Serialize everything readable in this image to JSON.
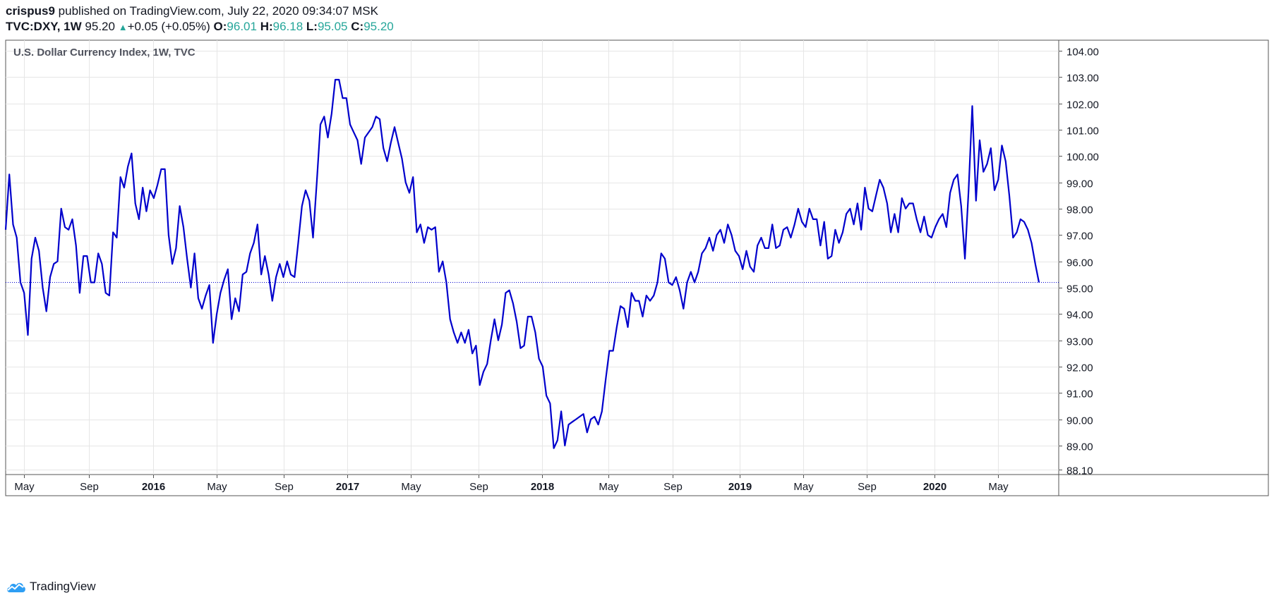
{
  "header": {
    "user": "crispus9",
    "published_text": "published on TradingView.com, July 22, 2020 09:34:07 MSK",
    "symbol": "TVC:DXY, 1W",
    "last": "95.20",
    "change_arrow": "▲",
    "change": "+0.05 (+0.05%)",
    "open_label": "O:",
    "open": "96.01",
    "high_label": "H:",
    "high": "96.18",
    "low_label": "L:",
    "low": "95.05",
    "close_label": "C:",
    "close": "95.20"
  },
  "chart_title": "U.S. Dollar Currency Index, 1W, TVC",
  "footer": {
    "logo_text": "TradingView",
    "logo_icon": "cloud-icon"
  },
  "colors": {
    "line": "#0000cc",
    "grid": "#e6e6e6",
    "text": "#131722",
    "up": "#26a69a"
  },
  "chart_data": {
    "type": "line",
    "x_ticks": [
      "May",
      "Sep",
      "2016",
      "May",
      "Sep",
      "2017",
      "May",
      "Sep",
      "2018",
      "May",
      "Sep",
      "2019",
      "May",
      "Sep",
      "2020",
      "May"
    ],
    "x_tick_bold": [
      false,
      false,
      true,
      false,
      false,
      true,
      false,
      false,
      true,
      false,
      false,
      true,
      false,
      false,
      true,
      false
    ],
    "y_ticks": [
      "104.00",
      "103.00",
      "102.00",
      "101.00",
      "100.00",
      "99.00",
      "98.00",
      "97.00",
      "96.00",
      "95.00",
      "94.00",
      "93.00",
      "92.00",
      "91.00",
      "90.00",
      "89.00",
      "88.10"
    ],
    "ylim": [
      87.9,
      104.4
    ],
    "current_value": 95.2,
    "grid": true,
    "series": [
      {
        "values": [
          97.2,
          99.3,
          97.4,
          96.9,
          95.2,
          94.8,
          93.2,
          96.1,
          96.9,
          96.4,
          95.0,
          94.1,
          95.4,
          95.9,
          96.0,
          98.0,
          97.3,
          97.2,
          97.6,
          96.6,
          94.8,
          96.2,
          96.2,
          95.2,
          95.2,
          96.3,
          95.9,
          94.8,
          94.7,
          97.1,
          96.9,
          99.2,
          98.8,
          99.6,
          100.1,
          98.2,
          97.6,
          98.8,
          97.9,
          98.7,
          98.4,
          98.9,
          99.5,
          99.5,
          97.0,
          95.9,
          96.5,
          98.1,
          97.3,
          96.1,
          95.0,
          96.3,
          94.6,
          94.2,
          94.7,
          95.1,
          92.9,
          94.0,
          94.8,
          95.3,
          95.7,
          93.8,
          94.6,
          94.1,
          95.5,
          95.6,
          96.3,
          96.7,
          97.4,
          95.5,
          96.2,
          95.5,
          94.5,
          95.4,
          95.9,
          95.4,
          96.0,
          95.5,
          95.4,
          96.7,
          98.1,
          98.7,
          98.3,
          96.9,
          99.0,
          101.2,
          101.5,
          100.7,
          101.6,
          102.9,
          102.9,
          102.2,
          102.2,
          101.2,
          100.9,
          100.6,
          99.7,
          100.7,
          100.9,
          101.1,
          101.5,
          101.4,
          100.3,
          99.8,
          100.5,
          101.1,
          100.5,
          99.9,
          99.0,
          98.6,
          99.2,
          97.1,
          97.4,
          96.7,
          97.3,
          97.2,
          97.3,
          95.6,
          96.0,
          95.2,
          93.8,
          93.3,
          92.9,
          93.3,
          92.9,
          93.4,
          92.5,
          92.8,
          91.3,
          91.8,
          92.1,
          93.0,
          93.8,
          93.0,
          93.6,
          94.8,
          94.9,
          94.4,
          93.7,
          92.7,
          92.8,
          93.9,
          93.9,
          93.3,
          92.3,
          92.0,
          90.9,
          90.6,
          88.9,
          89.2,
          90.3,
          89.0,
          89.8,
          89.9,
          90.0,
          90.1,
          90.2,
          89.5,
          90.0,
          90.1,
          89.8,
          90.3,
          91.5,
          92.6,
          92.6,
          93.5,
          94.3,
          94.2,
          93.5,
          94.8,
          94.5,
          94.5,
          93.9,
          94.7,
          94.5,
          94.7,
          95.2,
          96.3,
          96.1,
          95.2,
          95.1,
          95.4,
          94.9,
          94.2,
          95.2,
          95.6,
          95.2,
          95.6,
          96.3,
          96.5,
          96.9,
          96.4,
          97.0,
          97.2,
          96.7,
          97.4,
          97.0,
          96.4,
          96.2,
          95.7,
          96.4,
          95.8,
          95.6,
          96.6,
          96.9,
          96.5,
          96.5,
          97.4,
          96.5,
          96.6,
          97.2,
          97.3,
          96.9,
          97.4,
          98.0,
          97.5,
          97.3,
          98.0,
          97.6,
          97.6,
          96.6,
          97.5,
          96.1,
          96.2,
          97.2,
          96.7,
          97.1,
          97.8,
          98.0,
          97.4,
          98.2,
          97.2,
          98.8,
          98.0,
          97.9,
          98.5,
          99.1,
          98.8,
          98.2,
          97.1,
          97.8,
          97.1,
          98.4,
          98.0,
          98.2,
          98.2,
          97.6,
          97.1,
          97.7,
          97.0,
          96.9,
          97.3,
          97.6,
          97.8,
          97.3,
          98.6,
          99.1,
          99.3,
          98.1,
          96.1,
          98.7,
          101.9,
          98.3,
          100.6,
          99.4,
          99.7,
          100.3,
          98.7,
          99.1,
          100.4,
          99.8,
          98.5,
          96.9,
          97.1,
          97.6,
          97.5,
          97.2,
          96.7,
          95.9,
          95.2
        ]
      }
    ]
  }
}
